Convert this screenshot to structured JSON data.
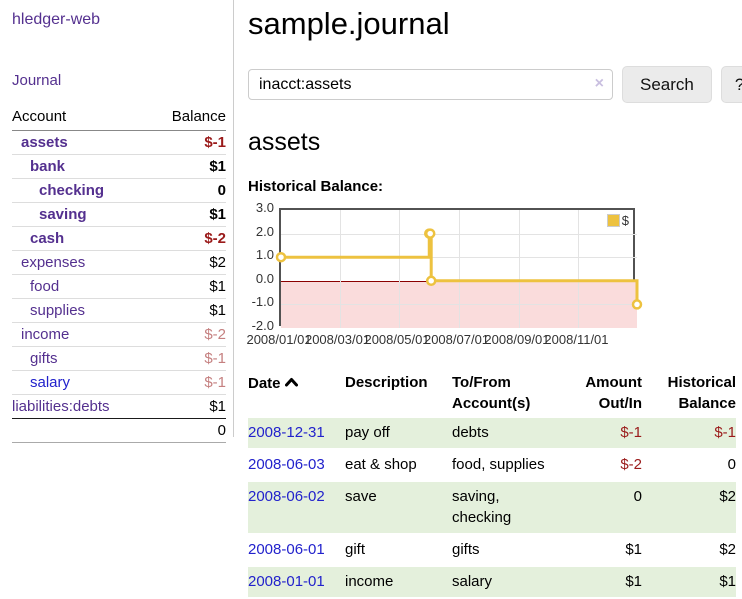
{
  "app": {
    "brand": "hledger-web",
    "nav": {
      "journal": "Journal"
    }
  },
  "colors": {
    "link_purple": "#54308f",
    "link_blue": "#2222cc",
    "negative": "#9a1a1a",
    "negative_muted": "#c58080",
    "row_shade_green": "#e4f0dc",
    "series_gold": "#edc240",
    "negative_region_pink": "#fadcdc",
    "zero_line_red": "#8b0000"
  },
  "sidebar": {
    "header": {
      "account": "Account",
      "balance": "Balance"
    },
    "rows": [
      {
        "name": "assets",
        "balance": "$-1",
        "indent": 1,
        "bold": true,
        "balance_style": "neg"
      },
      {
        "name": "bank",
        "balance": "$1",
        "indent": 2,
        "bold": true,
        "balance_style": "pos"
      },
      {
        "name": "checking",
        "balance": "0",
        "indent": 3,
        "bold": true,
        "balance_style": "pos"
      },
      {
        "name": "saving",
        "balance": "$1",
        "indent": 3,
        "bold": true,
        "balance_style": "pos"
      },
      {
        "name": "cash",
        "balance": "$-2",
        "indent": 2,
        "bold": true,
        "balance_style": "neg"
      },
      {
        "name": "expenses",
        "balance": "$2",
        "indent": 1,
        "bold": false,
        "balance_style": "pos"
      },
      {
        "name": "food",
        "balance": "$1",
        "indent": 2,
        "bold": false,
        "balance_style": "pos"
      },
      {
        "name": "supplies",
        "balance": "$1",
        "indent": 2,
        "bold": false,
        "balance_style": "pos"
      },
      {
        "name": "income",
        "balance": "$-2",
        "indent": 1,
        "bold": false,
        "balance_style": "neg-muted"
      },
      {
        "name": "gifts",
        "balance": "$-1",
        "indent": 2,
        "bold": false,
        "balance_style": "neg-muted"
      },
      {
        "name": "salary",
        "balance": "$-1",
        "indent": 2,
        "bold": false,
        "balance_style": "neg-muted",
        "link_style": "unvisited"
      },
      {
        "name": "liabilities:debts",
        "balance": "$1",
        "indent": 0,
        "bold": false,
        "balance_style": "pos"
      }
    ],
    "total": "0"
  },
  "header": {
    "title": "sample.journal"
  },
  "search": {
    "value": "inacct:assets",
    "clear_icon": "×",
    "button_label": "Search",
    "help_label": "?"
  },
  "account_page": {
    "title": "assets"
  },
  "chart_data": {
    "type": "line",
    "style": "steps",
    "title": "Historical Balance:",
    "series": [
      {
        "name": "$",
        "color": "#edc240",
        "points": [
          [
            "2008-01-01",
            1
          ],
          [
            "2008-06-01",
            2
          ],
          [
            "2008-06-02",
            2
          ],
          [
            "2008-06-03",
            0
          ],
          [
            "2008-12-31",
            -1
          ]
        ]
      }
    ],
    "x_range": [
      "2008-01-01",
      "2008-12-31"
    ],
    "ylim": [
      -2,
      3
    ],
    "x_ticks": [
      "2008/01/01",
      "2008/03/01",
      "2008/05/01",
      "2008/07/01",
      "2008/09/01",
      "2008/11/01"
    ],
    "y_ticks": [
      "3.0",
      "2.0",
      "1.0",
      "0.0",
      "-1.0",
      "-2.0"
    ],
    "grid": true,
    "legend_position": "top-right",
    "negative_region_fill": "#fadcdc",
    "zero_line_color": "#8b0000"
  },
  "register": {
    "headers": {
      "date": "Date",
      "description": "Description",
      "accounts": "To/From Account(s)",
      "amount": "Amount Out/In",
      "balance": "Historical Balance"
    },
    "sort_icon": "chevron-up",
    "rows": [
      {
        "date": "2008-12-31",
        "description": "pay off",
        "accounts": "debts",
        "amount": "$-1",
        "amount_negative": true,
        "balance": "$-1",
        "balance_negative": true,
        "shaded": true
      },
      {
        "date": "2008-06-03",
        "description": "eat & shop",
        "accounts": "food, supplies",
        "amount": "$-2",
        "amount_negative": true,
        "balance": "0",
        "balance_negative": false,
        "shaded": false
      },
      {
        "date": "2008-06-02",
        "description": "save",
        "accounts": "saving,\nchecking",
        "amount": "0",
        "amount_negative": false,
        "balance": "$2",
        "balance_negative": false,
        "shaded": true
      },
      {
        "date": "2008-06-01",
        "description": "gift",
        "accounts": "gifts",
        "amount": "$1",
        "amount_negative": false,
        "balance": "$2",
        "balance_negative": false,
        "shaded": false
      },
      {
        "date": "2008-01-01",
        "description": "income",
        "accounts": "salary",
        "amount": "$1",
        "amount_negative": false,
        "balance": "$1",
        "balance_negative": false,
        "shaded": true
      }
    ]
  }
}
